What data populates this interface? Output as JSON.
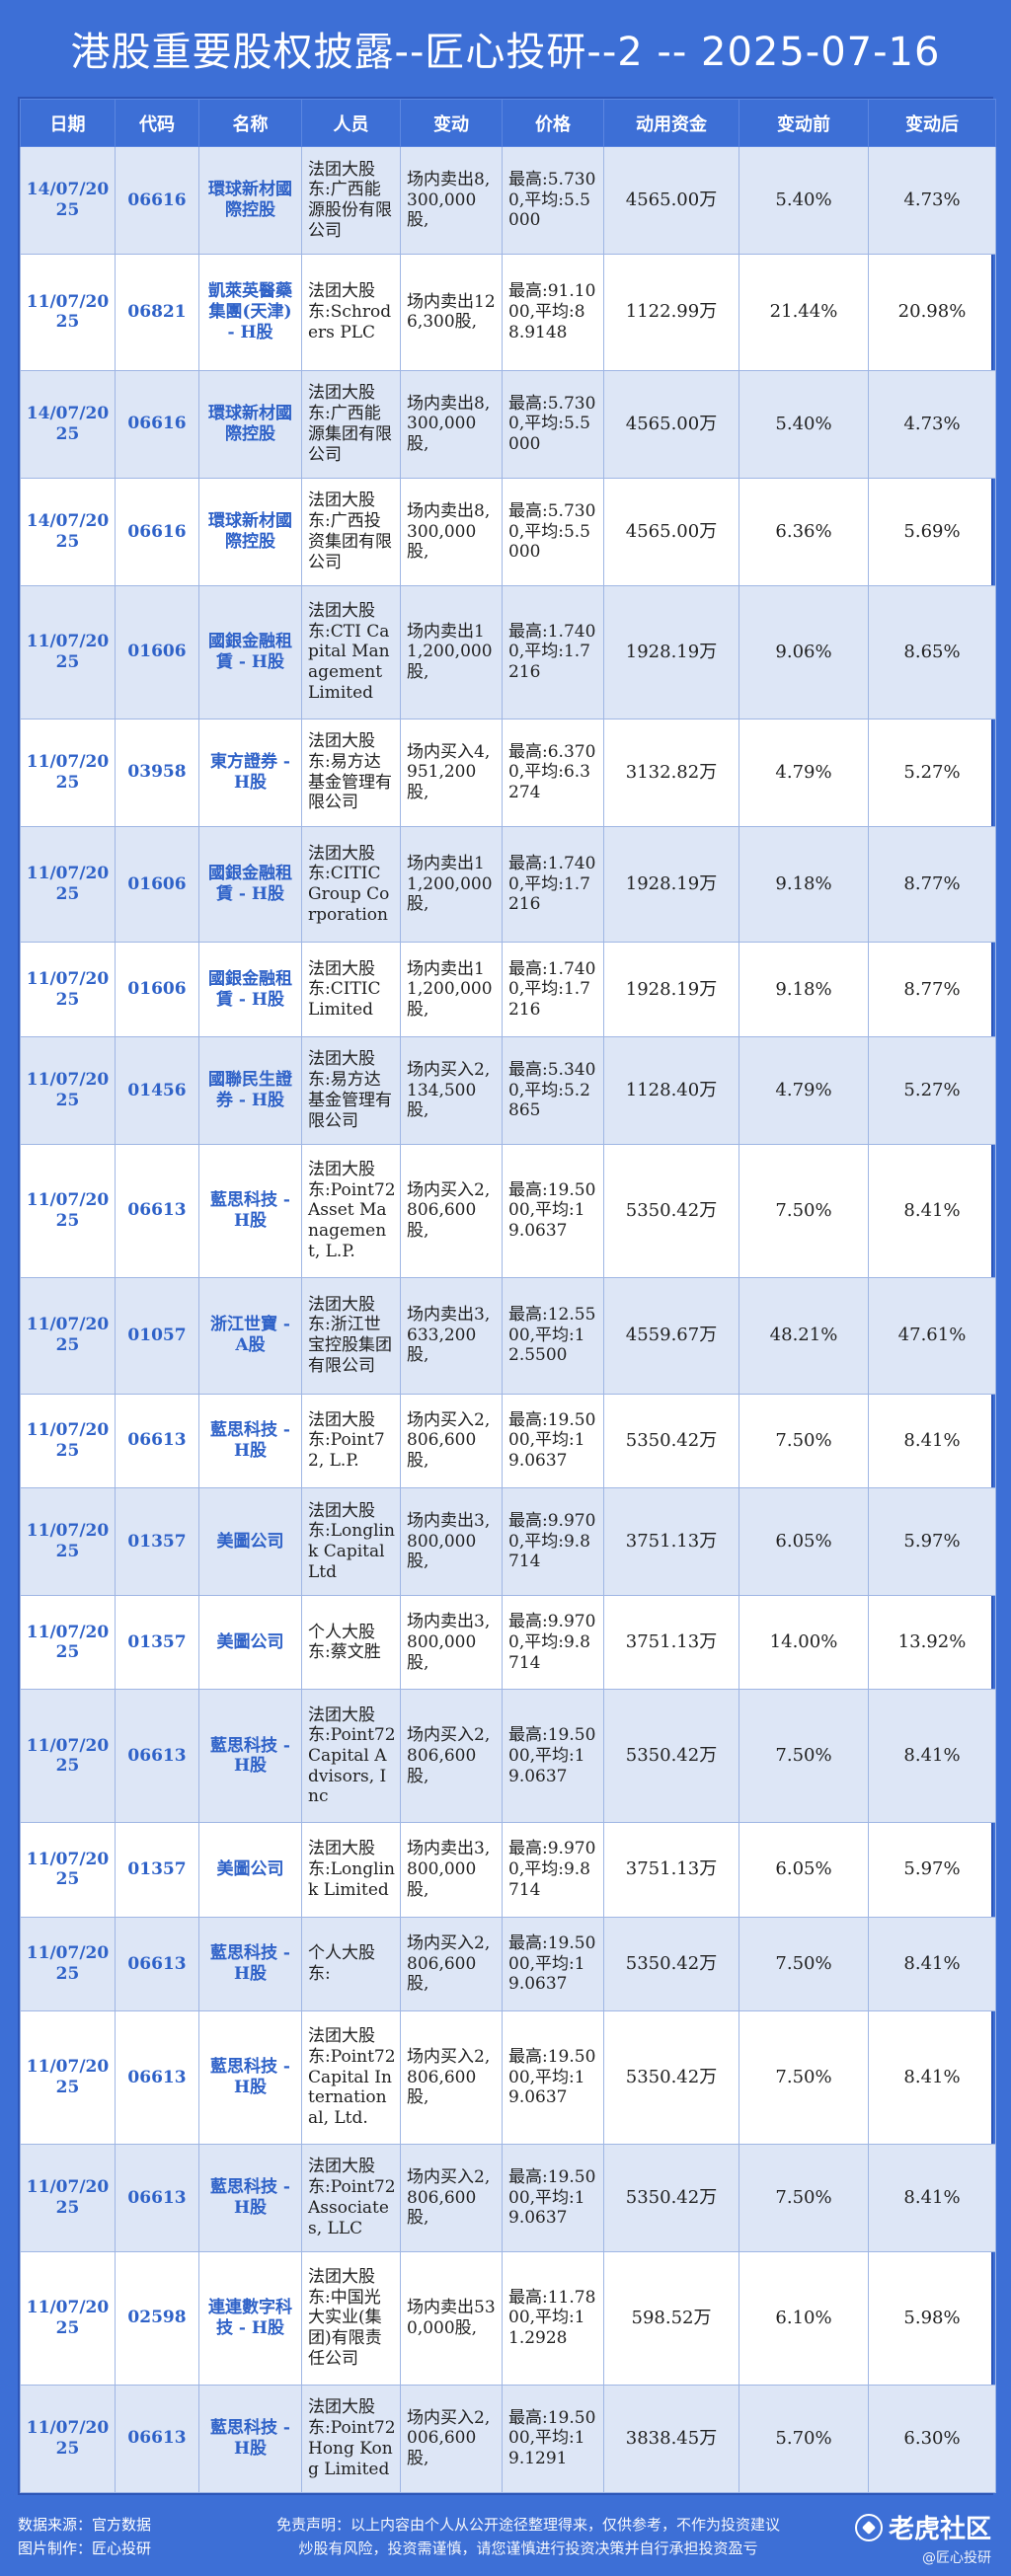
{
  "title": "港股重要股权披露--匠心投研--2 -- 2025-07-16",
  "headers": [
    "日期",
    "代码",
    "名称",
    "人员",
    "变动",
    "价格",
    "动用资金",
    "变动前",
    "变动后"
  ],
  "rows": [
    {
      "date": "14/07/2025",
      "code": "06616",
      "name": "環球新材國際控股",
      "person": "法团大股东:广西能源股份有限公司",
      "change": "场内卖出8,300,000股,",
      "price": "最高:5.7300,平均:5.5000",
      "funds": "4565.00万",
      "before": "5.40%",
      "after": "4.73%"
    },
    {
      "date": "11/07/2025",
      "code": "06821",
      "name": "凱萊英醫藥集團(天津) - H股",
      "person": "法团大股东:Schroders PLC",
      "change": "场内卖出126,300股,",
      "price": "最高:91.1000,平均:88.9148",
      "funds": "1122.99万",
      "before": "21.44%",
      "after": "20.98%"
    },
    {
      "date": "14/07/2025",
      "code": "06616",
      "name": "環球新材國際控股",
      "person": "法团大股东:广西能源集团有限公司",
      "change": "场内卖出8,300,000股,",
      "price": "最高:5.7300,平均:5.5000",
      "funds": "4565.00万",
      "before": "5.40%",
      "after": "4.73%"
    },
    {
      "date": "14/07/2025",
      "code": "06616",
      "name": "環球新材國際控股",
      "person": "法团大股东:广西投资集团有限公司",
      "change": "场内卖出8,300,000股,",
      "price": "最高:5.7300,平均:5.5000",
      "funds": "4565.00万",
      "before": "6.36%",
      "after": "5.69%"
    },
    {
      "date": "11/07/2025",
      "code": "01606",
      "name": "國銀金融租賃 - H股",
      "person": "法团大股东:CTI Capital Management Limited",
      "change": "场内卖出11,200,000股,",
      "price": "最高:1.7400,平均:1.7216",
      "funds": "1928.19万",
      "before": "9.06%",
      "after": "8.65%"
    },
    {
      "date": "11/07/2025",
      "code": "03958",
      "name": "東方證券 - H股",
      "person": "法团大股东:易方达基金管理有限公司",
      "change": "场内买入4,951,200股,",
      "price": "最高:6.3700,平均:6.3274",
      "funds": "3132.82万",
      "before": "4.79%",
      "after": "5.27%"
    },
    {
      "date": "11/07/2025",
      "code": "01606",
      "name": "國銀金融租賃 - H股",
      "person": "法团大股东:CITIC Group Corporation",
      "change": "场内卖出11,200,000股,",
      "price": "最高:1.7400,平均:1.7216",
      "funds": "1928.19万",
      "before": "9.18%",
      "after": "8.77%"
    },
    {
      "date": "11/07/2025",
      "code": "01606",
      "name": "國銀金融租賃 - H股",
      "person": "法团大股东:CITIC Limited",
      "change": "场内卖出11,200,000股,",
      "price": "最高:1.7400,平均:1.7216",
      "funds": "1928.19万",
      "before": "9.18%",
      "after": "8.77%"
    },
    {
      "date": "11/07/2025",
      "code": "01456",
      "name": "國聯民生證券 - H股",
      "person": "法团大股东:易方达基金管理有限公司",
      "change": "场内买入2,134,500股,",
      "price": "最高:5.3400,平均:5.2865",
      "funds": "1128.40万",
      "before": "4.79%",
      "after": "5.27%"
    },
    {
      "date": "11/07/2025",
      "code": "06613",
      "name": "藍思科技 - H股",
      "person": "法团大股东:Point72 Asset Management, L.P.",
      "change": "场内买入2,806,600股,",
      "price": "最高:19.5000,平均:19.0637",
      "funds": "5350.42万",
      "before": "7.50%",
      "after": "8.41%"
    },
    {
      "date": "11/07/2025",
      "code": "01057",
      "name": "浙江世寶 - A股",
      "person": "法团大股东:浙江世宝控股集团有限公司",
      "change": "场内卖出3,633,200股,",
      "price": "最高:12.5500,平均:12.5500",
      "funds": "4559.67万",
      "before": "48.21%",
      "after": "47.61%"
    },
    {
      "date": "11/07/2025",
      "code": "06613",
      "name": "藍思科技 - H股",
      "person": "法团大股东:Point72, L.P.",
      "change": "场内买入2,806,600股,",
      "price": "最高:19.5000,平均:19.0637",
      "funds": "5350.42万",
      "before": "7.50%",
      "after": "8.41%"
    },
    {
      "date": "11/07/2025",
      "code": "01357",
      "name": "美圖公司",
      "person": "法团大股东:Longlink Capital Ltd",
      "change": "场内卖出3,800,000股,",
      "price": "最高:9.9700,平均:9.8714",
      "funds": "3751.13万",
      "before": "6.05%",
      "after": "5.97%"
    },
    {
      "date": "11/07/2025",
      "code": "01357",
      "name": "美圖公司",
      "person": "个人大股东:蔡文胜",
      "change": "场内卖出3,800,000股,",
      "price": "最高:9.9700,平均:9.8714",
      "funds": "3751.13万",
      "before": "14.00%",
      "after": "13.92%"
    },
    {
      "date": "11/07/2025",
      "code": "06613",
      "name": "藍思科技 - H股",
      "person": "法团大股东:Point72 Capital Advisors, Inc",
      "change": "场内买入2,806,600股,",
      "price": "最高:19.5000,平均:19.0637",
      "funds": "5350.42万",
      "before": "7.50%",
      "after": "8.41%"
    },
    {
      "date": "11/07/2025",
      "code": "01357",
      "name": "美圖公司",
      "person": "法团大股东:Longlink Limited",
      "change": "场内卖出3,800,000股,",
      "price": "最高:9.9700,平均:9.8714",
      "funds": "3751.13万",
      "before": "6.05%",
      "after": "5.97%"
    },
    {
      "date": "11/07/2025",
      "code": "06613",
      "name": "藍思科技 - H股",
      "person": "个人大股东:",
      "change": "场内买入2,806,600股,",
      "price": "最高:19.5000,平均:19.0637",
      "funds": "5350.42万",
      "before": "7.50%",
      "after": "8.41%"
    },
    {
      "date": "11/07/2025",
      "code": "06613",
      "name": "藍思科技 - H股",
      "person": "法团大股东:Point72 Capital International, Ltd.",
      "change": "场内买入2,806,600股,",
      "price": "最高:19.5000,平均:19.0637",
      "funds": "5350.42万",
      "before": "7.50%",
      "after": "8.41%"
    },
    {
      "date": "11/07/2025",
      "code": "06613",
      "name": "藍思科技 - H股",
      "person": "法团大股东:Point72 Associates, LLC",
      "change": "场内买入2,806,600股,",
      "price": "最高:19.5000,平均:19.0637",
      "funds": "5350.42万",
      "before": "7.50%",
      "after": "8.41%"
    },
    {
      "date": "11/07/2025",
      "code": "02598",
      "name": "連連數字科技 - H股",
      "person": "法团大股东:中国光大实业(集团)有限责任公司",
      "change": "场内卖出530,000股,",
      "price": "最高:11.7800,平均:11.2928",
      "funds": "598.52万",
      "before": "6.10%",
      "after": "5.98%"
    },
    {
      "date": "11/07/2025",
      "code": "06613",
      "name": "藍思科技 - H股",
      "person": "法团大股东:Point72 Hong Kong Limited",
      "change": "场内买入2,006,600股,",
      "price": "最高:19.5000,平均:19.1291",
      "funds": "3838.45万",
      "before": "5.70%",
      "after": "6.30%"
    }
  ],
  "footer": {
    "source": "数据来源：官方数据",
    "maker": "图片制作：匠心投研",
    "disclaimer_1": "免责声明：以上内容由个人从公开途径整理得来，仅供参考，不作为投资建议",
    "disclaimer_2": "炒股有风险，投资需谨慎，请您谨慎进行投资决策并自行承担投资盈亏",
    "brand": "老虎社区",
    "brand_sub": "@匠心投研"
  }
}
